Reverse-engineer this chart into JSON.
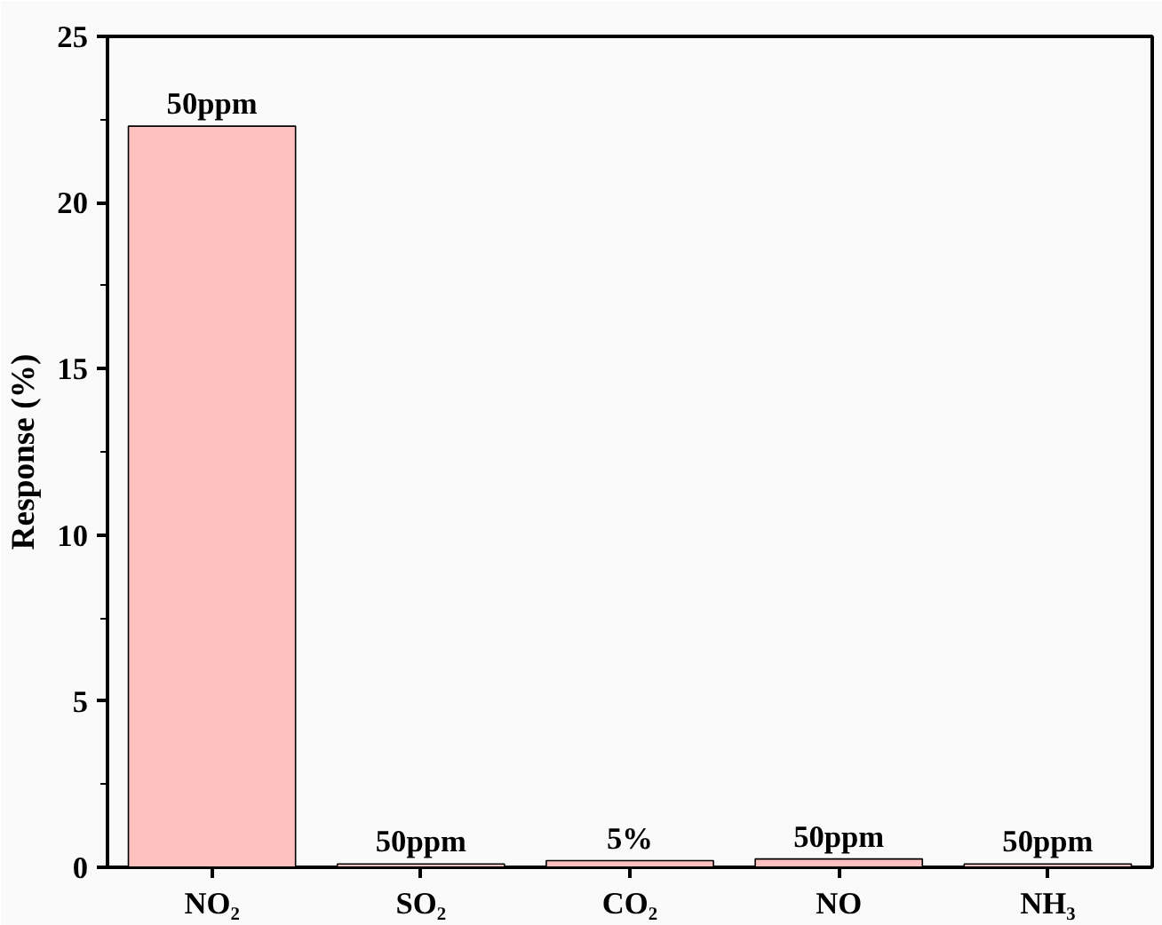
{
  "chart_data": {
    "type": "bar",
    "ylabel": "Response (%)",
    "categories": [
      "NO₂",
      "SO₂",
      "CO₂",
      "NO",
      "NH₃"
    ],
    "values": [
      22.3,
      0.1,
      0.2,
      0.25,
      0.1
    ],
    "annotations": [
      {
        "text": "50ppm",
        "x": "NO₂",
        "y": 22.3
      },
      {
        "text": "50ppm",
        "x": "SO₂",
        "y": 0.1
      },
      {
        "text": "5%",
        "x": "CO₂",
        "y": 0.2
      },
      {
        "text": "50ppm",
        "x": "NO",
        "y": 0.25
      },
      {
        "text": "50ppm",
        "x": "NH₃",
        "y": 0.1
      }
    ],
    "color": "#ffc0c0",
    "ylim": [
      0,
      25
    ],
    "yticks": [
      0,
      5,
      10,
      15,
      20,
      25
    ],
    "grid": false
  }
}
